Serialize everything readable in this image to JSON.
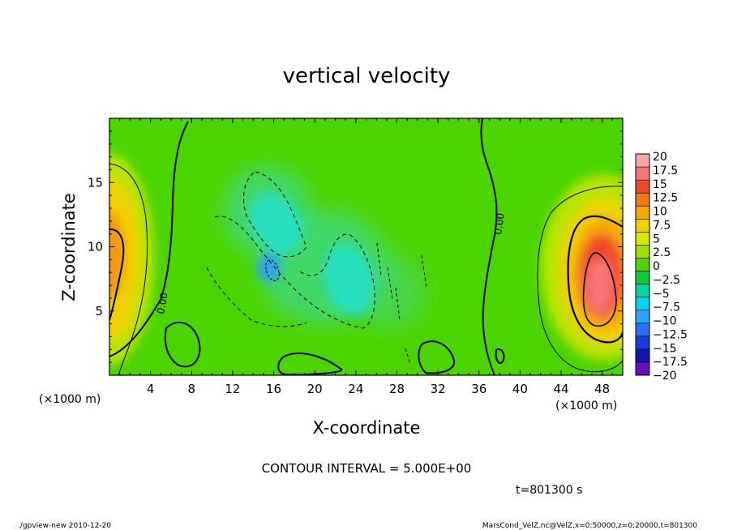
{
  "page": {
    "bottom_left_note": "./gpview-new  2010-12-20",
    "bottom_right_note": "MarsCond_VelZ.nc@VelZ,x=0:50000,z=0:20000,t=801300"
  },
  "chart_data": {
    "type": "heatmap",
    "title": "vertical velocity",
    "xlabel": "X-coordinate",
    "ylabel": "Z-coordinate",
    "x_unit": "(×1000 m)",
    "z_unit": "(×1000 m)",
    "xlim": [
      0,
      50
    ],
    "ylim": [
      0,
      20
    ],
    "x_ticks": [
      4,
      8,
      12,
      16,
      20,
      24,
      28,
      32,
      36,
      40,
      44,
      48
    ],
    "y_ticks": [
      5,
      10,
      15
    ],
    "contour_interval_text": "CONTOUR INTERVAL =  5.000E+00",
    "time_text": "t=801300 s",
    "contour_labels": [
      "0.00",
      "0.00"
    ],
    "colorbar": {
      "levels": [
        20,
        17.5,
        15,
        12.5,
        10,
        7.5,
        5,
        2.5,
        0,
        -2.5,
        -5,
        -7.5,
        -10,
        -12.5,
        -15,
        -17.5,
        -20
      ],
      "labels": [
        "20",
        "17.5",
        "15",
        "12.5",
        "10",
        "7.5",
        "5",
        "2.5",
        "0",
        "−2.5",
        "−5",
        "−7.5",
        "−10",
        "−12.5",
        "−15",
        "−17.5",
        "−20"
      ],
      "colors": [
        "#f5a6a6",
        "#f47777",
        "#f04a2a",
        "#f07a14",
        "#f5a800",
        "#f2d000",
        "#d8ea00",
        "#9ee000",
        "#52d200",
        "#10c83a",
        "#00d6a0",
        "#00d4ee",
        "#28a6ff",
        "#2a70ff",
        "#1a3ae6",
        "#1414b0",
        "#6a10b8"
      ]
    },
    "features": {
      "left_updraft": {
        "center_x": 0.5,
        "center_z": 9.0,
        "max_value": 10
      },
      "right_updraft": {
        "center_x": 47.5,
        "center_z": 8.5,
        "max_value": 15
      },
      "central_downdraft": {
        "center_x": 16,
        "center_z": 9.5,
        "min_value": -7.5
      },
      "background_value": 0
    }
  }
}
